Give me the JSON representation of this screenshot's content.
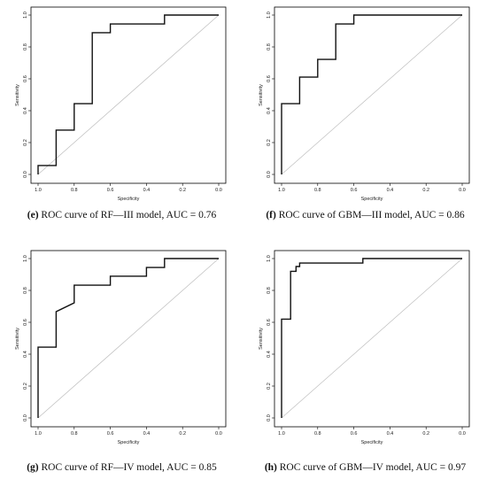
{
  "chart_data": [
    {
      "type": "line",
      "panel": "e",
      "caption_letter": "(e)",
      "caption_text": " ROC curve of RF—III model, AUC = 0.76",
      "xlabel": "Specificity",
      "ylabel": "Sensitivity",
      "xlim": [
        1.0,
        0.0
      ],
      "ylim": [
        0.0,
        1.0
      ],
      "x_ticks": [
        "1.0",
        "0.8",
        "0.6",
        "0.4",
        "0.2",
        "0.0"
      ],
      "y_ticks": [
        "0.0",
        "0.2",
        "0.4",
        "0.6",
        "0.8",
        "1.0"
      ],
      "series": [
        {
          "x": [
            1.0,
            1.0,
            0.9,
            0.9,
            0.8,
            0.8,
            0.7,
            0.7,
            0.6,
            0.6,
            0.3,
            0.3,
            0.0
          ],
          "y": [
            0.0,
            0.056,
            0.056,
            0.278,
            0.278,
            0.444,
            0.444,
            0.889,
            0.889,
            0.944,
            0.944,
            1.0,
            1.0
          ]
        }
      ]
    },
    {
      "type": "line",
      "panel": "f",
      "caption_letter": "(f)",
      "caption_text": " ROC curve of GBM—III model, AUC = 0.86",
      "xlabel": "Specificity",
      "ylabel": "Sensitivity",
      "xlim": [
        1.0,
        0.0
      ],
      "ylim": [
        0.0,
        1.0
      ],
      "x_ticks": [
        "1.0",
        "0.8",
        "0.6",
        "0.4",
        "0.2",
        "0.0"
      ],
      "y_ticks": [
        "0.0",
        "0.2",
        "0.4",
        "0.6",
        "0.8",
        "1.0"
      ],
      "series": [
        {
          "x": [
            1.0,
            1.0,
            0.9,
            0.9,
            0.8,
            0.8,
            0.7,
            0.7,
            0.6,
            0.6,
            0.0
          ],
          "y": [
            0.0,
            0.444,
            0.444,
            0.611,
            0.611,
            0.722,
            0.722,
            0.944,
            0.944,
            1.0,
            1.0
          ]
        }
      ]
    },
    {
      "type": "line",
      "panel": "g",
      "caption_letter": "(g)",
      "caption_text": " ROC curve of RF—IV model, AUC = 0.85",
      "xlabel": "Specificity",
      "ylabel": "Sensitivity",
      "xlim": [
        1.0,
        0.0
      ],
      "ylim": [
        0.0,
        1.0
      ],
      "x_ticks": [
        "1.0",
        "0.8",
        "0.6",
        "0.4",
        "0.2",
        "0.0"
      ],
      "y_ticks": [
        "0.0",
        "0.2",
        "0.4",
        "0.6",
        "0.8",
        "1.0"
      ],
      "series": [
        {
          "x": [
            1.0,
            1.0,
            0.9,
            0.9,
            0.8,
            0.8,
            0.6,
            0.6,
            0.4,
            0.4,
            0.3,
            0.3,
            0.0
          ],
          "y": [
            0.0,
            0.444,
            0.444,
            0.667,
            0.722,
            0.833,
            0.833,
            0.889,
            0.889,
            0.944,
            0.944,
            1.0,
            1.0
          ]
        }
      ]
    },
    {
      "type": "line",
      "panel": "h",
      "caption_letter": "(h)",
      "caption_text": " ROC curve of GBM—IV model, AUC = 0.97",
      "xlabel": "Specificity",
      "ylabel": "Sensitivity",
      "xlim": [
        1.0,
        0.0
      ],
      "ylim": [
        0.0,
        1.0
      ],
      "x_ticks": [
        "1.0",
        "0.8",
        "0.6",
        "0.4",
        "0.2",
        "0.0"
      ],
      "y_ticks": [
        "0.0",
        "0.2",
        "0.4",
        "0.6",
        "0.8",
        "1.0"
      ],
      "series": [
        {
          "x": [
            1.0,
            1.0,
            0.95,
            0.95,
            0.92,
            0.92,
            0.9,
            0.9,
            0.55,
            0.55,
            0.0
          ],
          "y": [
            0.0,
            0.62,
            0.62,
            0.92,
            0.92,
            0.95,
            0.95,
            0.972,
            0.972,
            1.0,
            1.0
          ]
        }
      ]
    }
  ]
}
